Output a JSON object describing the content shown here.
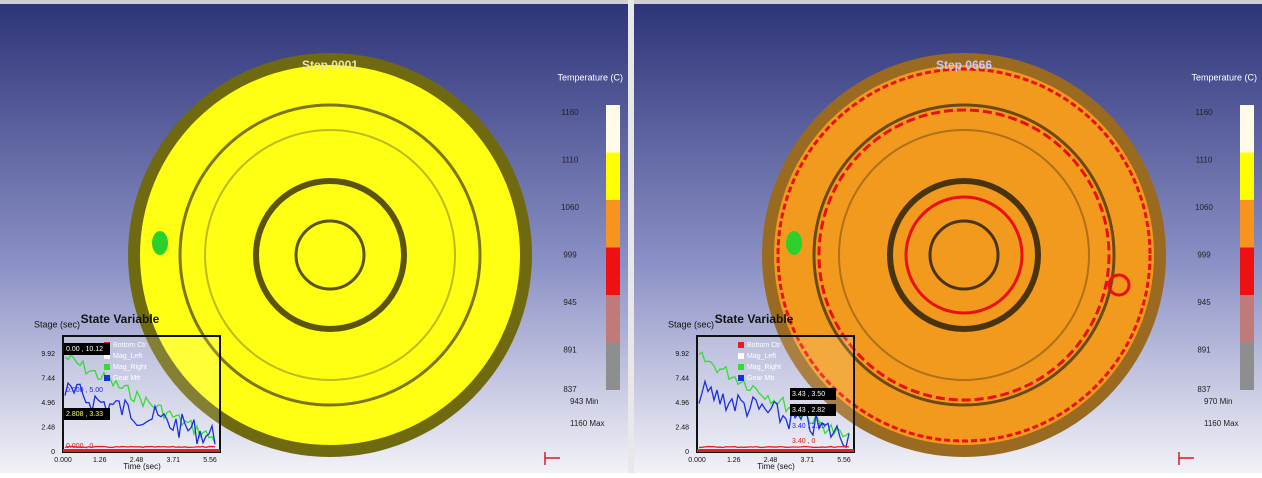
{
  "panels": [
    {
      "step": "Step 0001",
      "legend": {
        "title": "Temperature (C)",
        "ticks": [
          "1160",
          "1110",
          "1060",
          "999",
          "945",
          "891",
          "837"
        ],
        "colors": [
          "#fffbe6",
          "#ffff00",
          "#f7941d",
          "#ee1111",
          "#c07a7a",
          "#8e8e8e"
        ],
        "min_label": "943  Min",
        "max_label": "1160  Max"
      },
      "plot": {
        "title": "State Variable",
        "y_label": "Stage (sec)",
        "x_label": "Time (sec)",
        "yticks": [
          "9.92",
          "7.44",
          "4.96",
          "2.48",
          "0"
        ],
        "xticks": [
          "0.000",
          "1.26",
          "2.48",
          "3.71",
          "5.56"
        ],
        "legend": [
          "Bottom Ctr",
          "Mag_Left",
          "Mag_Right",
          "Gear Mtr"
        ],
        "annotations": [
          "0.00 , 10.12",
          "0.000 , 5.00",
          "2.808 , 3.33",
          "0.000 , 0"
        ]
      }
    },
    {
      "step": "Step 0666",
      "legend": {
        "title": "Temperature (C)",
        "ticks": [
          "1160",
          "1110",
          "1060",
          "999",
          "945",
          "891",
          "837"
        ],
        "colors": [
          "#fffbe6",
          "#ffff00",
          "#f7941d",
          "#ee1111",
          "#c07a7a",
          "#8e8e8e"
        ],
        "min_label": "970  Min",
        "max_label": "1160  Max"
      },
      "plot": {
        "title": "State Variable",
        "y_label": "Stage (sec)",
        "x_label": "Time (sec)",
        "yticks": [
          "9.92",
          "7.44",
          "4.96",
          "2.48",
          "0"
        ],
        "xticks": [
          "0.000",
          "1.26",
          "2.48",
          "3.71",
          "5.56"
        ],
        "legend": [
          "Bottom Ctr",
          "Mag_Left",
          "Mag_Right",
          "Gear Mtr"
        ],
        "annotations": [
          "3.43 , 3.50",
          "3.43 , 2.82",
          "3.40 , 2.15",
          "3.40 , 0"
        ]
      }
    }
  ]
}
